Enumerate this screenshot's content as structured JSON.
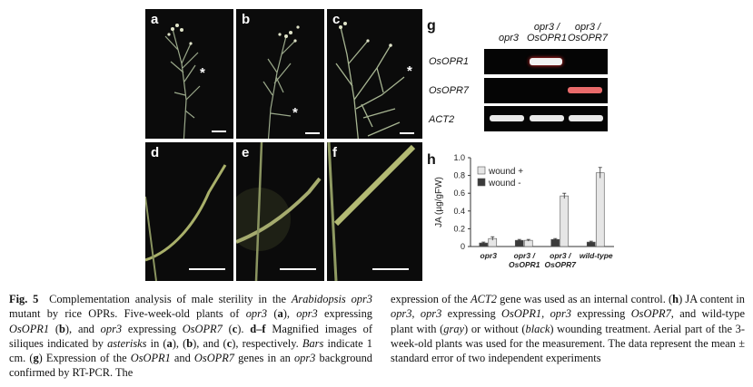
{
  "panels": {
    "a": {
      "label": "a",
      "asterisk": "*"
    },
    "b": {
      "label": "b",
      "asterisk": "*"
    },
    "c": {
      "label": "c",
      "asterisk": "*"
    },
    "d": {
      "label": "d"
    },
    "e": {
      "label": "e"
    },
    "f": {
      "label": "f"
    }
  },
  "gel": {
    "panel_label": "g",
    "lanes": [
      "opr3",
      "opr3 /\nOsOPR1",
      "opr3 /\nOsOPR7"
    ],
    "genes": [
      "OsOPR1",
      "OsOPR7",
      "ACT2"
    ]
  },
  "chart_data": {
    "type": "bar",
    "panel_label": "h",
    "categories": [
      "opr3",
      "opr3 /\nOsOPR1",
      "opr3 /\nOsOPR7",
      "wild-type"
    ],
    "series": [
      {
        "name": "wound +",
        "color": "#e6e6e6",
        "values": [
          0.09,
          0.07,
          0.57,
          0.83
        ],
        "errors": [
          0.02,
          0.01,
          0.03,
          0.06
        ]
      },
      {
        "name": "wound -",
        "color": "#3a3a3a",
        "values": [
          0.04,
          0.07,
          0.08,
          0.05
        ],
        "errors": [
          0.01,
          0.01,
          0.01,
          0.01
        ]
      }
    ],
    "ylabel": "JA (µg/gFW)",
    "ylim": [
      0,
      1.0
    ],
    "yticks": [
      "0",
      "0.2",
      "0.4",
      "0.6",
      "0.8",
      "1.0"
    ],
    "legend_position": "top-left"
  },
  "caption": {
    "fig_label": "Fig. 5",
    "left_html": "Complementation analysis of male sterility in the <i>Arabidopsis opr3</i> mutant by rice OPRs. Five-week-old plants of <i>opr3</i> (<b>a</b>), <i>opr3</i> expressing <i>OsOPR1</i> (<b>b</b>), and <i>opr3</i> expressing <i>OsOPR7</i> (<b>c</b>). <b>d–f</b> Magnified images of siliques indicated by <i>asterisks</i> in (<b>a</b>), (<b>b</b>), and (<b>c</b>), respectively. <i>Bars</i> indicate 1 cm. (<b>g</b>) Expression of the <i>OsOPR1</i> and <i>OsOPR7</i> genes in an <i>opr3</i> background confirmed by RT-PCR. The",
    "right_html": "expression of the <i>ACT2</i> gene was used as an internal control. (<b>h</b>) JA content in <i>opr3</i>, <i>opr3</i> expressing <i>OsOPR1</i>, <i>opr3</i> expressing <i>OsOPR7</i>, and wild-type plant with (<i>gray</i>) or without (<i>black</i>) wounding treatment. Aerial part of the 3-week-old plants was used for the measurement. The data represent the mean ± standard error of two independent experiments"
  }
}
